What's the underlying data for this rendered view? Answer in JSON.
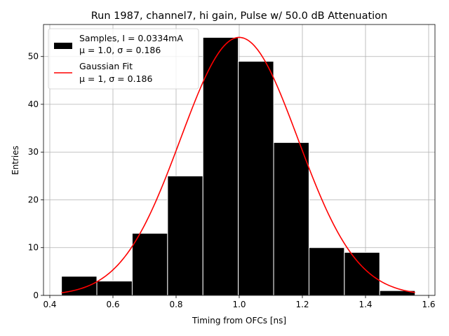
{
  "chart_data": {
    "type": "bar",
    "title": "Run 1987, channel7, hi gain, Pulse w/ 50.0 dB Attenuation",
    "xlabel": "Timing from OFCs [ns]",
    "ylabel": "Entries",
    "xlim": [
      0.38,
      1.62
    ],
    "ylim": [
      0,
      56.7
    ],
    "xticks": [
      0.4,
      0.6,
      0.8,
      1.0,
      1.2,
      1.4,
      1.6
    ],
    "xtick_labels": [
      "0.4",
      "0.6",
      "0.8",
      "1.0",
      "1.2",
      "1.4",
      "1.6"
    ],
    "yticks": [
      0,
      10,
      20,
      30,
      40,
      50
    ],
    "ytick_labels": [
      "0",
      "10",
      "20",
      "30",
      "40",
      "50"
    ],
    "grid": true,
    "legend_position": "top-left",
    "histogram": {
      "name": "Samples, I = 0.0334mA",
      "stats": "μ = 1.0, σ = 0.186",
      "color": "#000000",
      "edge_color": "#ffffff",
      "bin_edges": [
        0.437,
        0.549,
        0.661,
        0.773,
        0.885,
        0.997,
        1.109,
        1.221,
        1.333,
        1.445,
        1.557
      ],
      "values": [
        4,
        3,
        13,
        25,
        54,
        49,
        32,
        10,
        9,
        1
      ]
    },
    "fit": {
      "name": "Gaussian Fit",
      "stats": "μ = 1, σ = 0.186",
      "color": "#ff0000",
      "mu": 1.0,
      "sigma": 0.186,
      "amplitude": 54,
      "x_range": [
        0.437,
        1.557
      ]
    }
  }
}
